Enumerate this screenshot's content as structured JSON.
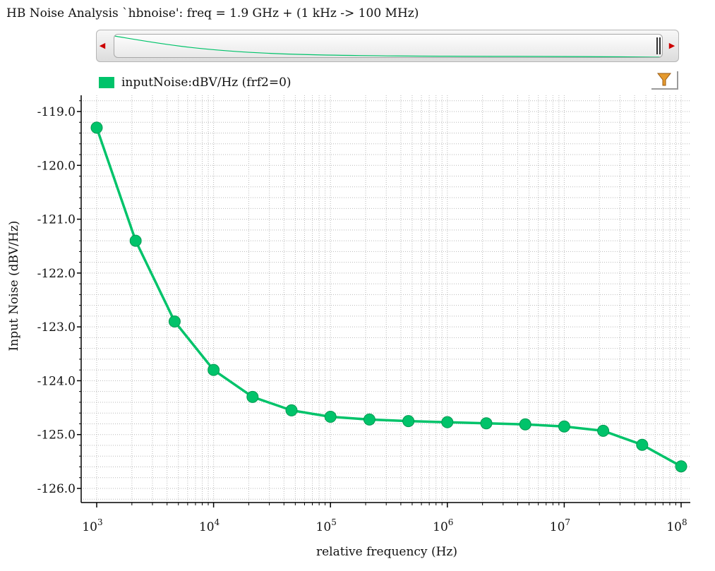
{
  "window": {
    "title": "HB Noise Analysis `hbnoise': freq = 1.9 GHz + (1 kHz -> 100 MHz)"
  },
  "legend": {
    "label": "inputNoise:dBV/Hz (frf2=0)",
    "color": "#00c36a"
  },
  "toolbar": {
    "filter_icon": "funnel-icon"
  },
  "chart_data": {
    "type": "line",
    "xscale": "log",
    "xlabel": "relative frequency (Hz)",
    "ylabel": "Input Noise (dBV/Hz)",
    "xlim": [
      1000,
      100000000
    ],
    "ylim": [
      -126.2,
      -118.9
    ],
    "yticks": [
      "-119.0",
      "-120.0",
      "-121.0",
      "-122.0",
      "-123.0",
      "-124.0",
      "-125.0",
      "-126.0"
    ],
    "xticks": [
      {
        "base": "10",
        "exp": "3"
      },
      {
        "base": "10",
        "exp": "4"
      },
      {
        "base": "10",
        "exp": "5"
      },
      {
        "base": "10",
        "exp": "6"
      },
      {
        "base": "10",
        "exp": "7"
      },
      {
        "base": "10",
        "exp": "8"
      }
    ],
    "grid": true,
    "series": [
      {
        "color": "#00c36a",
        "x": [
          1000,
          2154,
          4642,
          10000,
          21544,
          46416,
          100000,
          215443,
          464159,
          1000000,
          2154435,
          4641589,
          10000000,
          21544347,
          46415888,
          100000000
        ],
        "y": [
          -119.3,
          -121.4,
          -122.9,
          -123.8,
          -124.3,
          -124.55,
          -124.67,
          -124.72,
          -124.75,
          -124.77,
          -124.79,
          -124.81,
          -124.85,
          -124.93,
          -125.19,
          -125.59
        ]
      }
    ]
  }
}
